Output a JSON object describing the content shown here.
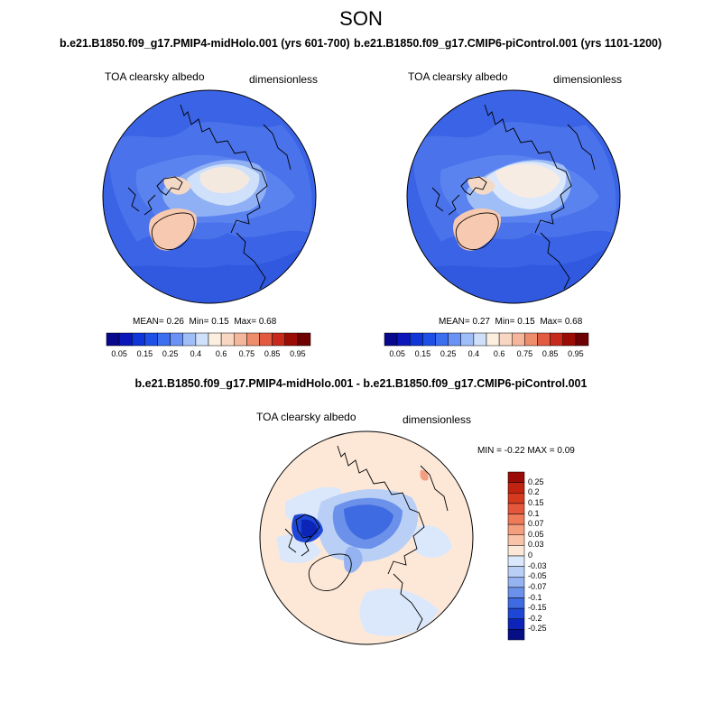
{
  "season": "SON",
  "panels": [
    {
      "title": "b.e21.B1850.f09_g17.PMIP4-midHolo.001 (yrs 601-700)",
      "variable": "TOA clearsky albedo",
      "units": "dimensionless",
      "mean_label": "MEAN=",
      "mean": "0.26",
      "min_label": "Min=",
      "min": "0.15",
      "max_label": "Max=",
      "max": "0.68"
    },
    {
      "title": "b.e21.B1850.f09_g17.CMIP6-piControl.001 (yrs 1101-1200)",
      "variable": "TOA clearsky albedo",
      "units": "dimensionless",
      "mean_label": "MEAN=",
      "mean": "0.27",
      "min_label": "Min=",
      "min": "0.15",
      "max_label": "Max=",
      "max": "0.68"
    }
  ],
  "colorbar": {
    "ticks": [
      "0.05",
      "0.15",
      "0.25",
      "0.4",
      "0.6",
      "0.75",
      "0.85",
      "0.95"
    ],
    "colors": [
      "#08088c",
      "#0b17b8",
      "#0f36d8",
      "#1e50e6",
      "#3c6ef0",
      "#6a92f5",
      "#9fbef7",
      "#cfe0fa",
      "#fdefe0",
      "#f9d6c2",
      "#f5b79c",
      "#ee8d6c",
      "#e25a40",
      "#c72a1a",
      "#9c0c06",
      "#6e0202"
    ]
  },
  "diff": {
    "title": "b.e21.B1850.f09_g17.PMIP4-midHolo.001 - b.e21.B1850.f09_g17.CMIP6-piControl.001",
    "variable": "TOA clearsky albedo",
    "units": "dimensionless",
    "min_label": "MIN =",
    "min": "-0.22",
    "max_label": "MAX =",
    "max": "0.09",
    "colorbar_ticks": [
      "0.25",
      "0.2",
      "0.15",
      "0.1",
      "0.07",
      "0.05",
      "0.03",
      "0",
      "-0.03",
      "-0.05",
      "-0.07",
      "-0.1",
      "-0.15",
      "-0.2",
      "-0.25"
    ],
    "colorbar_colors": [
      "#9c0c06",
      "#c0230f",
      "#d63a1e",
      "#e4573a",
      "#ee7a5a",
      "#f49e80",
      "#f8c3a8",
      "#fde8d8",
      "#dbe8fb",
      "#b9cff6",
      "#94b3f0",
      "#6b91ea",
      "#3f6be2",
      "#1f47d6",
      "#0c24b8",
      "#050e84"
    ]
  }
}
